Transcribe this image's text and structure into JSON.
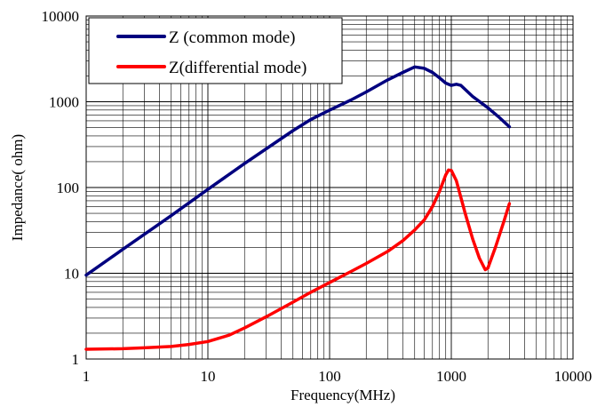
{
  "chart_data": {
    "type": "line",
    "xlabel": "Frequency(MHz)",
    "ylabel": "Impedance( ohm)",
    "x_scale": "log",
    "y_scale": "log",
    "xlim": [
      1,
      10000
    ],
    "ylim": [
      1,
      10000
    ],
    "x_ticks": [
      "1",
      "10",
      "100",
      "1000",
      "10000"
    ],
    "y_ticks": [
      "1",
      "10",
      "100",
      "1000",
      "10000"
    ],
    "grid": true,
    "legend_position": "top-left",
    "series": [
      {
        "name": "Z (common mode)",
        "color": "#00007f",
        "points": [
          [
            1,
            9.5
          ],
          [
            2,
            19
          ],
          [
            5,
            47
          ],
          [
            10,
            95
          ],
          [
            20,
            190
          ],
          [
            50,
            460
          ],
          [
            70,
            620
          ],
          [
            100,
            800
          ],
          [
            150,
            1050
          ],
          [
            200,
            1300
          ],
          [
            300,
            1800
          ],
          [
            400,
            2200
          ],
          [
            500,
            2550
          ],
          [
            600,
            2450
          ],
          [
            700,
            2200
          ],
          [
            800,
            1900
          ],
          [
            900,
            1650
          ],
          [
            1000,
            1550
          ],
          [
            1100,
            1600
          ],
          [
            1200,
            1550
          ],
          [
            1500,
            1150
          ],
          [
            2000,
            850
          ],
          [
            2500,
            650
          ],
          [
            3000,
            510
          ]
        ]
      },
      {
        "name": "Z(differential mode)",
        "color": "#ff0000",
        "points": [
          [
            1,
            1.3
          ],
          [
            2,
            1.32
          ],
          [
            3,
            1.35
          ],
          [
            5,
            1.4
          ],
          [
            7,
            1.48
          ],
          [
            10,
            1.6
          ],
          [
            15,
            1.9
          ],
          [
            20,
            2.3
          ],
          [
            30,
            3.1
          ],
          [
            50,
            4.6
          ],
          [
            70,
            6
          ],
          [
            100,
            7.8
          ],
          [
            150,
            10.5
          ],
          [
            200,
            13
          ],
          [
            300,
            18
          ],
          [
            400,
            24
          ],
          [
            500,
            32
          ],
          [
            600,
            42
          ],
          [
            700,
            60
          ],
          [
            800,
            90
          ],
          [
            900,
            140
          ],
          [
            950,
            160
          ],
          [
            1000,
            158
          ],
          [
            1100,
            120
          ],
          [
            1300,
            50
          ],
          [
            1500,
            25
          ],
          [
            1700,
            15
          ],
          [
            1900,
            11
          ],
          [
            2000,
            11.5
          ],
          [
            2300,
            20
          ],
          [
            2700,
            40
          ],
          [
            3000,
            65
          ]
        ]
      }
    ]
  }
}
